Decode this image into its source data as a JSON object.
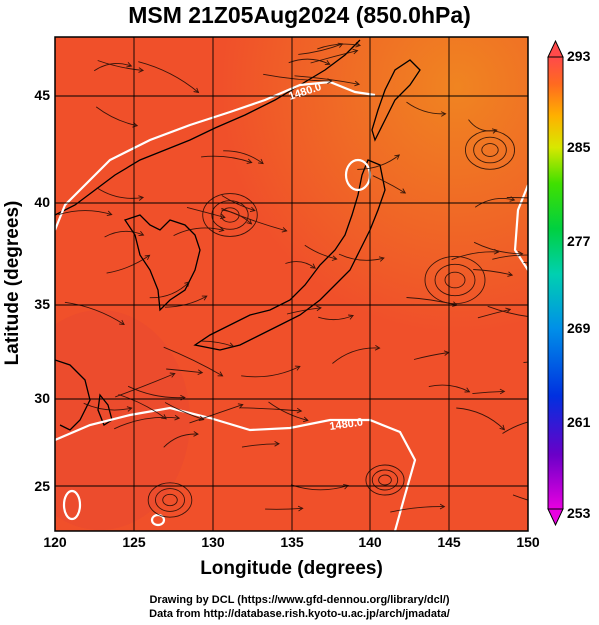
{
  "title": "MSM 21Z05Aug2024 (850.0hPa)",
  "x_axis": {
    "label": "Longitude (degrees)",
    "ticks": [
      "120",
      "125",
      "130",
      "135",
      "140",
      "145",
      "150"
    ],
    "range": [
      120,
      150
    ]
  },
  "y_axis": {
    "label": "Latitude  (degrees)",
    "ticks": [
      "25",
      "30",
      "35",
      "40",
      "45"
    ],
    "range": [
      22.4,
      47.6
    ]
  },
  "colorbar": {
    "ticks": [
      "293",
      "285",
      "277",
      "269",
      "261",
      "253"
    ],
    "range": [
      253,
      293
    ],
    "colors": [
      "#e800e0",
      "#6a00c8",
      "#0030e0",
      "#0090e8",
      "#00d0b0",
      "#00d040",
      "#40e000",
      "#d8e800",
      "#ffb000",
      "#ff6a20",
      "#ff4a4a"
    ]
  },
  "contours": [
    {
      "label": "1480.0"
    },
    {
      "label": "1480.0"
    }
  ],
  "field_colors": {
    "base": "#f0502a",
    "warm": "#f07a20",
    "cool": "#ea4a30"
  },
  "credits": [
    "Drawing by DCL (https://www.gfd-dennou.org/library/dcl/)",
    "Data from http://database.rish.kyoto-u.ac.jp/arch/jmadata/"
  ]
}
